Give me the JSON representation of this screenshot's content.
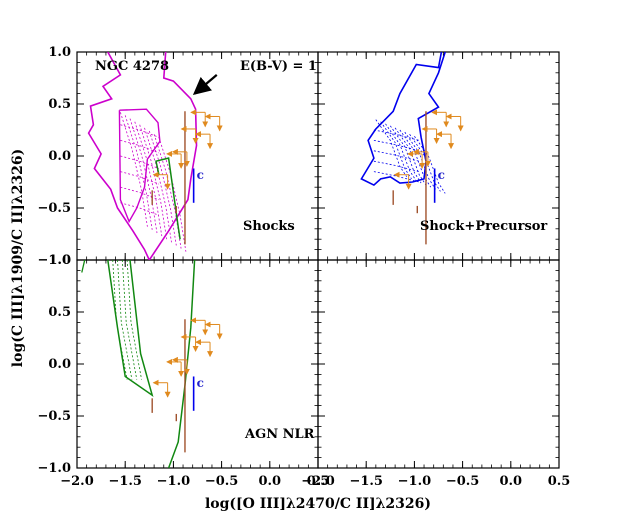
{
  "chart_data": {
    "type": "scatter",
    "layout": "2x2 panel grid",
    "xlabel": "log([O III]λ2470/C II]λ2326)",
    "ylabel": "log(C III]λ1909/C II]λ2326)",
    "xlim": [
      -2.0,
      0.5
    ],
    "ylim": [
      -1.0,
      1.0
    ],
    "x_ticks": [
      -2.0,
      -1.5,
      -1.0,
      -0.5,
      0.0,
      0.5
    ],
    "y_ticks": [
      -1.0,
      -0.5,
      0.0,
      0.5,
      1.0
    ],
    "x_tick_labels": [
      "−2.0",
      "−1.5",
      "−1.0",
      "−0.5",
      "0.0",
      "0.5"
    ],
    "y_tick_labels": [
      "−1.0",
      "−0.5",
      "0.0",
      "0.5",
      "1.0"
    ],
    "colors": {
      "shocks": "#cc00cc",
      "precursor": "#0000ee",
      "agn": "#118811",
      "obs": "#a0522d",
      "limits": "#e08a1e",
      "letter": "#2222cc"
    },
    "annotations": {
      "object": "NGC 4278",
      "reddening": "E(B-V) = 1",
      "comp_letter": "c"
    },
    "panels": [
      {
        "name": "Shocks",
        "model": "shocks"
      },
      {
        "name": "Shock+Precursor",
        "model": "precursor"
      },
      {
        "name": "AGN NLR",
        "model": "agn"
      },
      {
        "name": "",
        "model": "none"
      }
    ],
    "observations": [
      {
        "label": "obs-vertical-bar",
        "x": -0.88,
        "y_range": [
          -0.85,
          0.43
        ]
      },
      {
        "label": "obs-short-bar-1",
        "x": -1.22,
        "y_range": [
          -0.47,
          -0.33
        ]
      },
      {
        "label": "obs-short-bar-2",
        "x": -0.97,
        "y_range": [
          -0.55,
          -0.48
        ]
      },
      {
        "label": "obs-c-bar",
        "x": -0.79,
        "y_range": [
          -0.45,
          -0.12
        ]
      }
    ],
    "upper_limits": [
      {
        "x": -0.67,
        "y": 0.42
      },
      {
        "x": -0.52,
        "y": 0.38
      },
      {
        "x": -0.77,
        "y": 0.26
      },
      {
        "x": -0.62,
        "y": 0.21
      },
      {
        "x": -0.92,
        "y": 0.02
      },
      {
        "x": -1.06,
        "y": -0.18
      },
      {
        "x": -0.86,
        "y": 0.04
      }
    ],
    "shocks_envelope": [
      [
        -1.68,
        1.0
      ],
      [
        -1.55,
        0.78
      ],
      [
        -1.73,
        0.67
      ],
      [
        -1.64,
        0.55
      ],
      [
        -1.86,
        0.48
      ],
      [
        -1.83,
        0.3
      ],
      [
        -1.88,
        0.22
      ],
      [
        -1.75,
        0.02
      ],
      [
        -1.82,
        -0.12
      ],
      [
        -1.65,
        -0.32
      ],
      [
        -1.58,
        -0.5
      ],
      [
        -1.42,
        -0.72
      ],
      [
        -1.3,
        -0.9
      ],
      [
        -1.25,
        -1.0
      ]
    ],
    "shocks_envelope_right": [
      [
        -1.25,
        -1.0
      ],
      [
        -1.05,
        -0.72
      ],
      [
        -0.85,
        -0.42
      ],
      [
        -0.82,
        -0.22
      ],
      [
        -0.76,
        0.1
      ],
      [
        -0.77,
        0.45
      ],
      [
        -0.82,
        0.55
      ],
      [
        -1.0,
        0.72
      ],
      [
        -1.1,
        0.75
      ],
      [
        -1.08,
        1.0
      ]
    ],
    "shocks_inner": [
      [
        -1.56,
        0.44
      ],
      [
        -1.28,
        0.45
      ],
      [
        -1.16,
        0.32
      ],
      [
        -1.14,
        0.14
      ],
      [
        -1.27,
        -0.03
      ],
      [
        -1.3,
        -0.3
      ],
      [
        -1.38,
        -0.5
      ],
      [
        -1.46,
        -0.63
      ],
      [
        -1.55,
        -0.42
      ],
      [
        -1.56,
        0.44
      ]
    ],
    "precursor_envelope": [
      [
        -0.72,
        1.0
      ],
      [
        -0.75,
        0.85
      ],
      [
        -0.98,
        0.88
      ],
      [
        -1.15,
        0.6
      ],
      [
        -1.22,
        0.43
      ],
      [
        -1.4,
        0.26
      ],
      [
        -1.48,
        0.15
      ],
      [
        -1.42,
        -0.02
      ],
      [
        -1.55,
        -0.22
      ],
      [
        -1.42,
        -0.28
      ],
      [
        -1.35,
        -0.22
      ],
      [
        -1.25,
        -0.2
      ],
      [
        -1.15,
        -0.26
      ],
      [
        -1.02,
        -0.25
      ],
      [
        -0.9,
        -0.22
      ],
      [
        -0.88,
        -0.05
      ],
      [
        -0.93,
        0.18
      ],
      [
        -0.96,
        0.36
      ],
      [
        -0.75,
        0.47
      ],
      [
        -0.85,
        0.6
      ],
      [
        -0.75,
        0.8
      ],
      [
        -0.68,
        1.0
      ]
    ],
    "agn_grid": [
      [
        -1.68,
        1.0
      ],
      [
        -1.58,
        0.35
      ],
      [
        -1.5,
        -0.12
      ],
      [
        -1.22,
        -0.3
      ],
      [
        -1.34,
        0.1
      ],
      [
        -1.45,
        1.0
      ]
    ],
    "agn_track_shocks": [
      [
        -1.15,
        -0.18
      ],
      [
        -1.18,
        -0.05
      ],
      [
        -1.05,
        -0.02
      ],
      [
        -0.95,
        -0.68
      ],
      [
        -0.93,
        -0.8
      ]
    ],
    "agn_track_right": [
      [
        -0.78,
        1.0
      ],
      [
        -0.82,
        0.35
      ],
      [
        -0.88,
        -0.2
      ],
      [
        -0.95,
        -0.75
      ],
      [
        -1.05,
        -1.0
      ]
    ]
  }
}
